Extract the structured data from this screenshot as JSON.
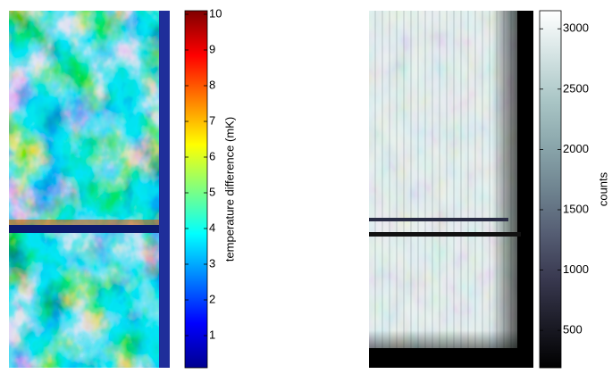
{
  "chart_data": [
    {
      "type": "image",
      "colormap": "jet",
      "colorbar_label": "temperature difference (mK)",
      "colorbar_lim": [
        0.1,
        10.1
      ],
      "colorbar_ticks": [
        1,
        2,
        3,
        4,
        5,
        6,
        7,
        8,
        9,
        10
      ]
    },
    {
      "type": "image",
      "colormap": "bone",
      "colorbar_label": "counts",
      "colorbar_lim": [
        190,
        3150
      ],
      "colorbar_ticks": [
        500,
        1000,
        1500,
        2000,
        2500,
        3000
      ]
    }
  ]
}
